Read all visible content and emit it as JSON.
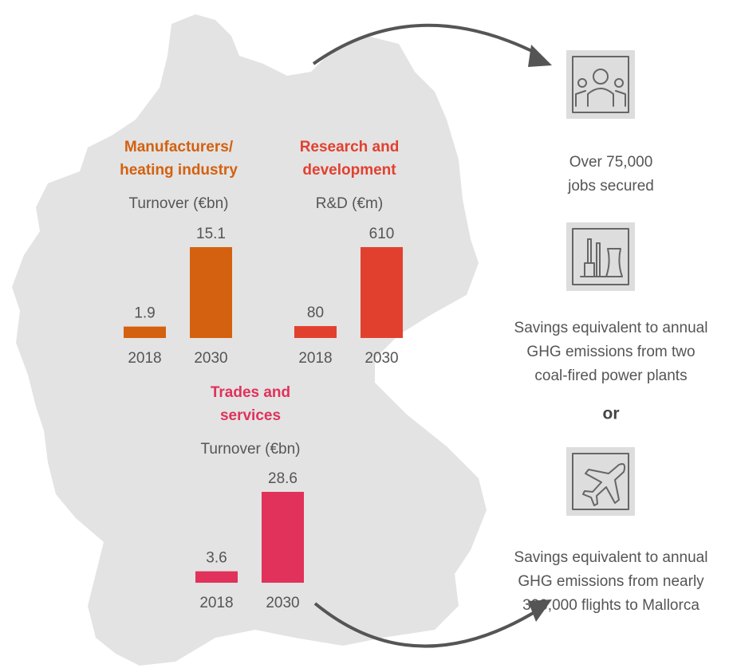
{
  "chart_data": [
    {
      "type": "bar",
      "title": [
        "Manufacturers/",
        "heating industry"
      ],
      "subtitle": "Turnover (€bn)",
      "categories": [
        "2018",
        "2030"
      ],
      "values": [
        1.9,
        15.1
      ],
      "color": "#d4610f"
    },
    {
      "type": "bar",
      "title": [
        "Research and",
        "development"
      ],
      "subtitle": "R&D (€m)",
      "categories": [
        "2018",
        "2030"
      ],
      "values": [
        80,
        610
      ],
      "color": "#e2402f"
    },
    {
      "type": "bar",
      "title": [
        "Trades and",
        "services"
      ],
      "subtitle": "Turnover (€bn)",
      "categories": [
        "2018",
        "2030"
      ],
      "values": [
        3.6,
        28.6
      ],
      "color": "#e0325a"
    }
  ],
  "outcomes": [
    [
      "Over 75,000",
      "jobs secured"
    ],
    [
      "Savings equivalent to annual",
      "GHG emissions from two",
      "coal-fired power plants"
    ],
    [
      "Savings equivalent to annual",
      "GHG emissions from nearly",
      "300,000 flights to Mallorca"
    ]
  ],
  "conjunction": "or"
}
